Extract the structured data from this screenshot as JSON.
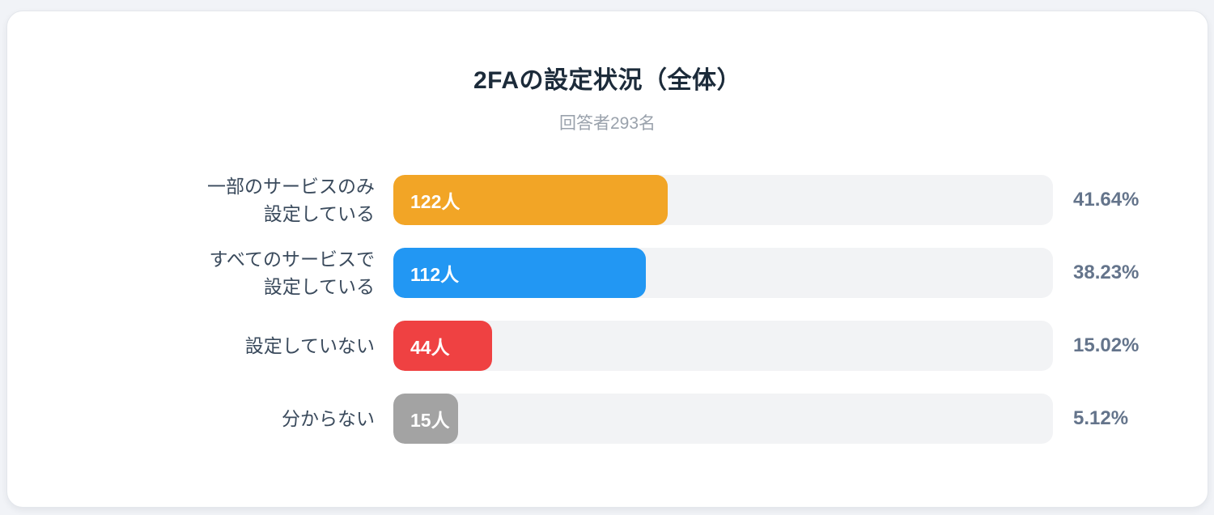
{
  "page": {
    "background_color": "#F1F3F7",
    "card_background_color": "#FFFFFF"
  },
  "chart_data": {
    "type": "bar",
    "orientation": "horizontal",
    "title": "2FAの設定状況（全体）",
    "subtitle": "回答者293名",
    "respondents_total": 293,
    "categories": [
      "一部のサービスのみ設定している",
      "すべてのサービスで設定している",
      "設定していない",
      "分からない"
    ],
    "category_lines": [
      [
        "一部のサービスのみ",
        "設定している"
      ],
      [
        "すべてのサービスで",
        "設定している"
      ],
      [
        "設定していない"
      ],
      [
        "分からない"
      ]
    ],
    "values": [
      122,
      112,
      44,
      15
    ],
    "value_labels": [
      "122人",
      "112人",
      "44人",
      "15人"
    ],
    "percents": [
      41.64,
      38.23,
      15.02,
      5.12
    ],
    "percent_labels": [
      "41.64%",
      "38.23%",
      "15.02%",
      "5.12%"
    ],
    "bar_colors": [
      "#F2A526",
      "#2297F3",
      "#EF4142",
      "#A3A3A3"
    ],
    "track_color": "#F2F3F5",
    "xlim": [
      0,
      100
    ],
    "legend": "none",
    "grid": "off"
  }
}
